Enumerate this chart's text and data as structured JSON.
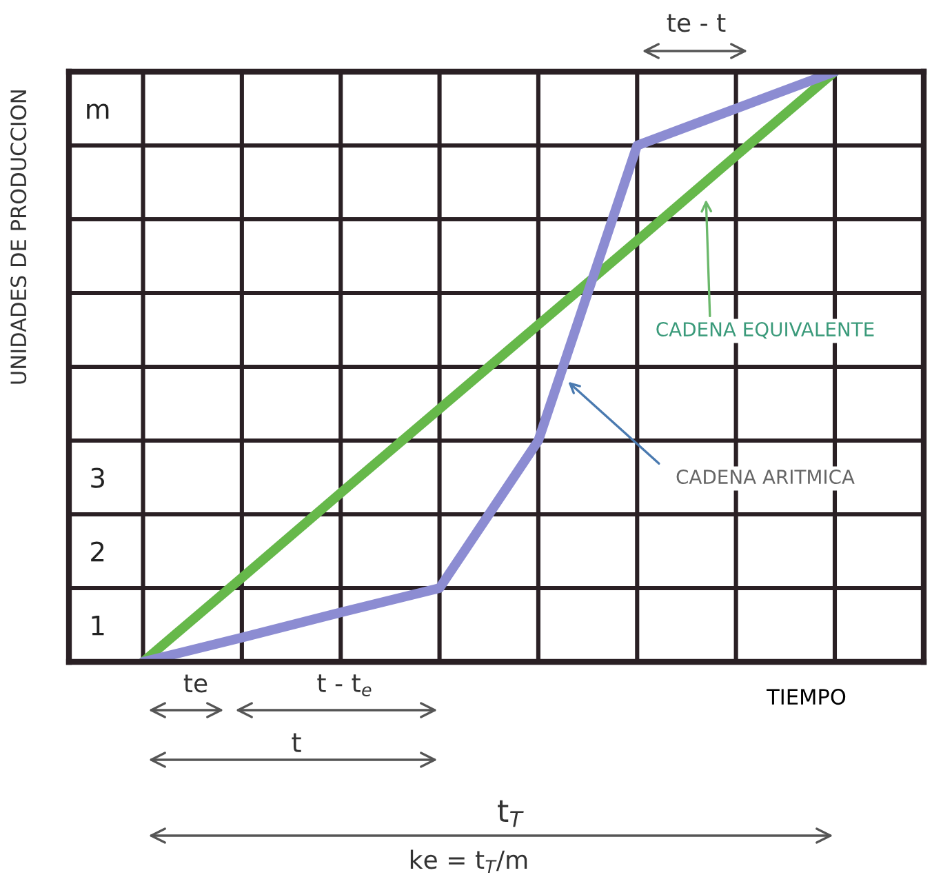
{
  "chart_data": {
    "type": "line",
    "xlabel": "TIEMPO",
    "ylabel": "UNIDADES DE PRODUCCION",
    "categories": [
      null,
      null,
      null,
      null,
      null,
      null,
      null,
      null
    ],
    "ylim": [
      0,
      8
    ],
    "yticks": [
      {
        "value": 1,
        "label": null
      },
      {
        "value": 2,
        "label": null
      },
      {
        "value": 3,
        "label": null
      },
      {
        "value": 4,
        "label": null
      },
      {
        "value": 5,
        "label": null
      },
      {
        "value": 6,
        "label": null
      },
      {
        "value": 7,
        "label": null
      },
      {
        "value": 0.5,
        "label": "1"
      },
      {
        "value": 1.5,
        "label": "2"
      },
      {
        "value": 2.5,
        "label": "3"
      },
      {
        "value": 7.5,
        "label": "m"
      }
    ],
    "grid": true,
    "marker": "none",
    "line_style": "solid",
    "legend": false,
    "series": [
      {
        "color": "#66b84a",
        "values": [
          0,
          1.14,
          2.29,
          3.43,
          4.57,
          5.71,
          6.86,
          8
        ]
      },
      {
        "color": "#8c8cd2",
        "values": [
          0,
          0.33,
          0.67,
          1,
          3,
          7,
          7.5,
          8
        ]
      }
    ],
    "annotations": [
      "CADENA EQUIVALENTE",
      "CADENA ARITMICA",
      "te - t",
      "te",
      "t - t$_{e}$",
      "t",
      "t$_{T}$",
      "ke = t$_{T}$/m"
    ]
  }
}
